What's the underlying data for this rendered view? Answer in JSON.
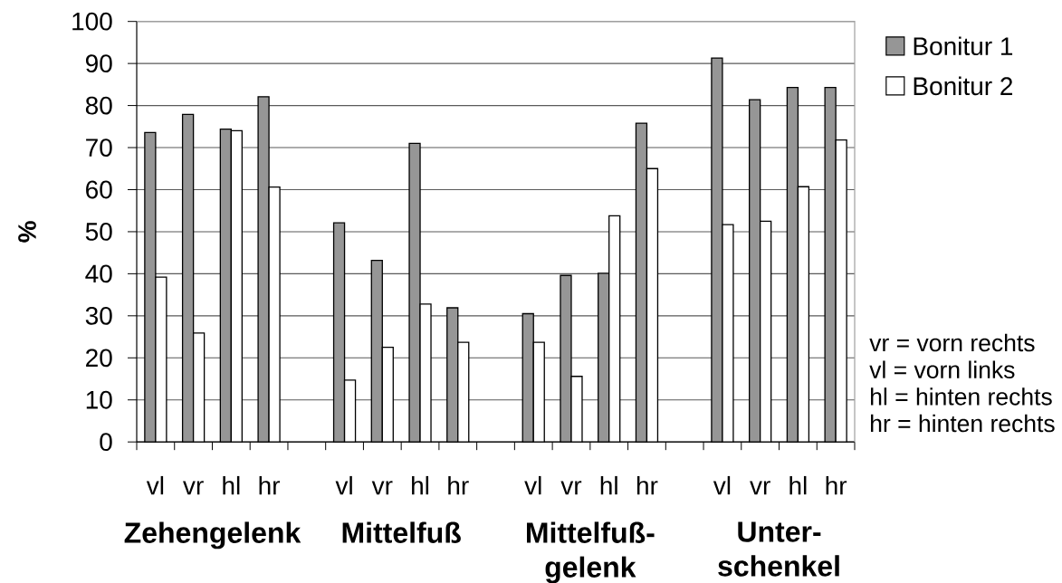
{
  "chart_data": {
    "type": "bar",
    "ylabel": "%",
    "categories": [
      "vl",
      "vr",
      "hl",
      "hr",
      null,
      "vl",
      "vr",
      "hl",
      "hr",
      null,
      "vl",
      "vr",
      "hl",
      "hr",
      null,
      "vl",
      "vr",
      "hl",
      "hr"
    ],
    "series": [
      {
        "name": "Bonitur 1",
        "color": "#969696",
        "values": [
          73.6,
          77.9,
          74.4,
          82.1,
          null,
          52.1,
          43.2,
          71.0,
          31.9,
          null,
          30.5,
          39.6,
          40.1,
          75.8,
          null,
          91.3,
          81.4,
          84.3,
          84.3
        ]
      },
      {
        "name": "Bonitur 2",
        "color": "#ffffff",
        "values": [
          39.2,
          25.9,
          74.0,
          60.6,
          null,
          14.7,
          22.5,
          32.8,
          23.7,
          null,
          23.7,
          15.6,
          53.8,
          65.0,
          null,
          51.7,
          52.5,
          60.7,
          71.8
        ]
      }
    ],
    "ylim": [
      0,
      100
    ],
    "yticks": [
      0,
      10,
      20,
      30,
      40,
      50,
      60,
      70,
      80,
      90,
      100
    ],
    "grid": "y",
    "legend": "top right",
    "annotations": [
      "Zehengelenk",
      "Mittelfuß",
      "Mittelfuß-gelenk",
      "Unter-schenkel",
      "vr = vorn rechts",
      "vl = vorn links",
      "hl = hinten rechts",
      "hr = hinten rechts"
    ]
  }
}
